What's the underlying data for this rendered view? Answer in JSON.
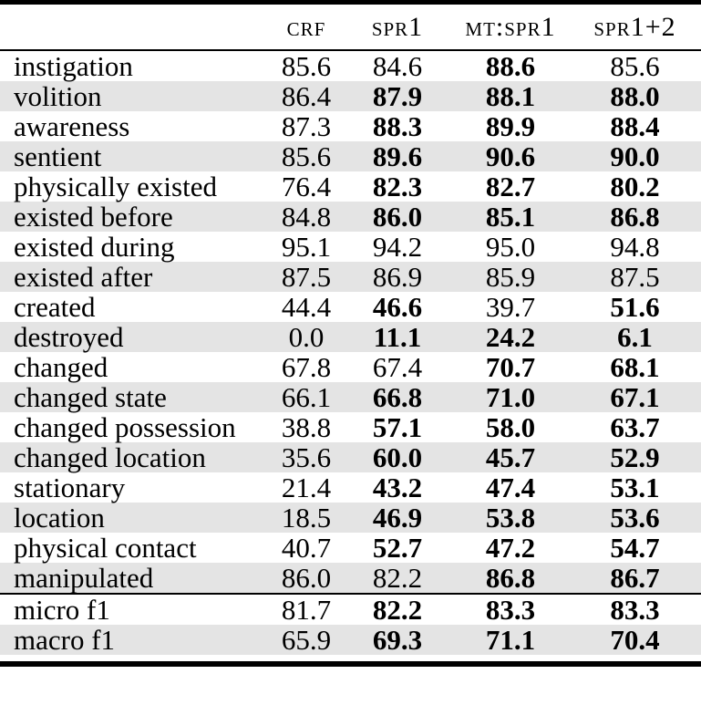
{
  "table": {
    "header": [
      "CRF",
      "SPR1",
      "MT:SPR1",
      "SPR1+2"
    ],
    "rows": [
      {
        "label": "instigation",
        "values": [
          "85.6",
          "84.6",
          "88.6",
          "85.6"
        ],
        "bold": [
          false,
          false,
          true,
          false
        ]
      },
      {
        "label": "volition",
        "values": [
          "86.4",
          "87.9",
          "88.1",
          "88.0"
        ],
        "bold": [
          false,
          true,
          true,
          true
        ]
      },
      {
        "label": "awareness",
        "values": [
          "87.3",
          "88.3",
          "89.9",
          "88.4"
        ],
        "bold": [
          false,
          true,
          true,
          true
        ]
      },
      {
        "label": "sentient",
        "values": [
          "85.6",
          "89.6",
          "90.6",
          "90.0"
        ],
        "bold": [
          false,
          true,
          true,
          true
        ]
      },
      {
        "label": "physically existed",
        "values": [
          "76.4",
          "82.3",
          "82.7",
          "80.2"
        ],
        "bold": [
          false,
          true,
          true,
          true
        ]
      },
      {
        "label": "existed before",
        "values": [
          "84.8",
          "86.0",
          "85.1",
          "86.8"
        ],
        "bold": [
          false,
          true,
          true,
          true
        ]
      },
      {
        "label": "existed during",
        "values": [
          "95.1",
          "94.2",
          "95.0",
          "94.8"
        ],
        "bold": [
          false,
          false,
          false,
          false
        ]
      },
      {
        "label": "existed after",
        "values": [
          "87.5",
          "86.9",
          "85.9",
          "87.5"
        ],
        "bold": [
          false,
          false,
          false,
          false
        ]
      },
      {
        "label": "created",
        "values": [
          "44.4",
          "46.6",
          "39.7",
          "51.6"
        ],
        "bold": [
          false,
          true,
          false,
          true
        ]
      },
      {
        "label": "destroyed",
        "values": [
          "0.0",
          "11.1",
          "24.2",
          "6.1"
        ],
        "bold": [
          false,
          true,
          true,
          true
        ]
      },
      {
        "label": "changed",
        "values": [
          "67.8",
          "67.4",
          "70.7",
          "68.1"
        ],
        "bold": [
          false,
          false,
          true,
          true
        ]
      },
      {
        "label": "changed state",
        "values": [
          "66.1",
          "66.8",
          "71.0",
          "67.1"
        ],
        "bold": [
          false,
          true,
          true,
          true
        ]
      },
      {
        "label": "changed possession",
        "values": [
          "38.8",
          "57.1",
          "58.0",
          "63.7"
        ],
        "bold": [
          false,
          true,
          true,
          true
        ]
      },
      {
        "label": "changed location",
        "values": [
          "35.6",
          "60.0",
          "45.7",
          "52.9"
        ],
        "bold": [
          false,
          true,
          true,
          true
        ]
      },
      {
        "label": "stationary",
        "values": [
          "21.4",
          "43.2",
          "47.4",
          "53.1"
        ],
        "bold": [
          false,
          true,
          true,
          true
        ]
      },
      {
        "label": "location",
        "values": [
          "18.5",
          "46.9",
          "53.8",
          "53.6"
        ],
        "bold": [
          false,
          true,
          true,
          true
        ]
      },
      {
        "label": "physical contact",
        "values": [
          "40.7",
          "52.7",
          "47.2",
          "54.7"
        ],
        "bold": [
          false,
          true,
          true,
          true
        ]
      },
      {
        "label": "manipulated",
        "values": [
          "86.0",
          "82.2",
          "86.8",
          "86.7"
        ],
        "bold": [
          false,
          false,
          true,
          true
        ]
      }
    ],
    "summary_rows": [
      {
        "label": "micro f1",
        "values": [
          "81.7",
          "82.2",
          "83.3",
          "83.3"
        ],
        "bold": [
          false,
          true,
          true,
          true
        ]
      },
      {
        "label": "macro f1",
        "values": [
          "65.9",
          "69.3",
          "71.1",
          "70.4"
        ],
        "bold": [
          false,
          true,
          true,
          true
        ]
      }
    ]
  },
  "colors": {
    "row_shade": "#e4e4e4",
    "rule": "#000000"
  }
}
